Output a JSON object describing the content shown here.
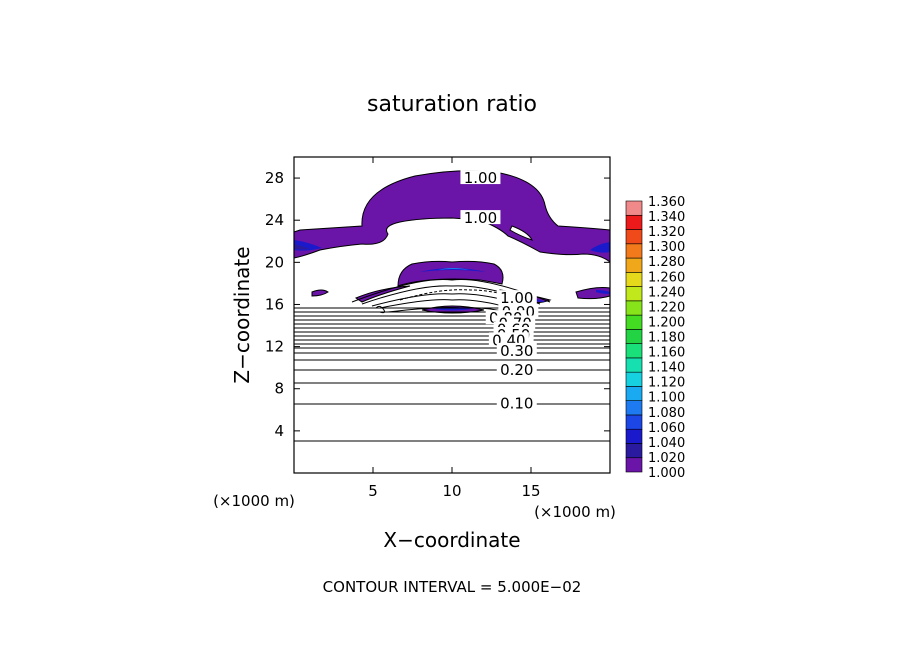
{
  "chart_data": {
    "type": "heatmap",
    "title": "saturation ratio",
    "xlabel": "X−coordinate",
    "ylabel": "Z−coordinate",
    "x_unit_left": "(×1000 m)",
    "x_unit_right": "(×1000 m)",
    "xlim": [
      0,
      20
    ],
    "ylim": [
      0,
      30
    ],
    "xticks": [
      5,
      10,
      15
    ],
    "yticks": [
      4,
      8,
      12,
      16,
      20,
      24,
      28
    ],
    "footer": "CONTOUR INTERVAL = 5.000E−02",
    "colorbar": {
      "levels": [
        "1.000",
        "1.020",
        "1.040",
        "1.060",
        "1.080",
        "1.100",
        "1.120",
        "1.140",
        "1.160",
        "1.180",
        "1.200",
        "1.220",
        "1.240",
        "1.260",
        "1.280",
        "1.300",
        "1.320",
        "1.340",
        "1.360"
      ],
      "colors": [
        "#6a14a8",
        "#2a1aa0",
        "#1a1acc",
        "#1c46e6",
        "#1e7af0",
        "#1aaaf2",
        "#16d2e0",
        "#16e0b0",
        "#1ae07a",
        "#22d444",
        "#44dc22",
        "#88e41a",
        "#c0e81a",
        "#e6d81a",
        "#f0a81a",
        "#f27a1a",
        "#f04a1a",
        "#ec1a1a",
        "#f08a8a"
      ]
    },
    "contour_labels": [
      {
        "text": "1.00",
        "x": 11.8,
        "y": 28.0
      },
      {
        "text": "1.00",
        "x": 11.8,
        "y": 24.2
      },
      {
        "text": "1.00",
        "x": 14.1,
        "y": 16.6
      },
      {
        "text": "0.90",
        "x": 14.2,
        "y": 15.3
      },
      {
        "text": "0.80",
        "x": 13.4,
        "y": 14.7
      },
      {
        "text": "0.70",
        "x": 14.0,
        "y": 14.2
      },
      {
        "text": "0.60",
        "x": 13.9,
        "y": 13.6
      },
      {
        "text": "0.50",
        "x": 13.9,
        "y": 13.1
      },
      {
        "text": "0.40",
        "x": 13.6,
        "y": 12.6
      },
      {
        "text": "0.30",
        "x": 14.1,
        "y": 11.6
      },
      {
        "text": "0.20",
        "x": 14.1,
        "y": 9.8
      },
      {
        "text": "0.10",
        "x": 14.1,
        "y": 6.6
      }
    ]
  }
}
